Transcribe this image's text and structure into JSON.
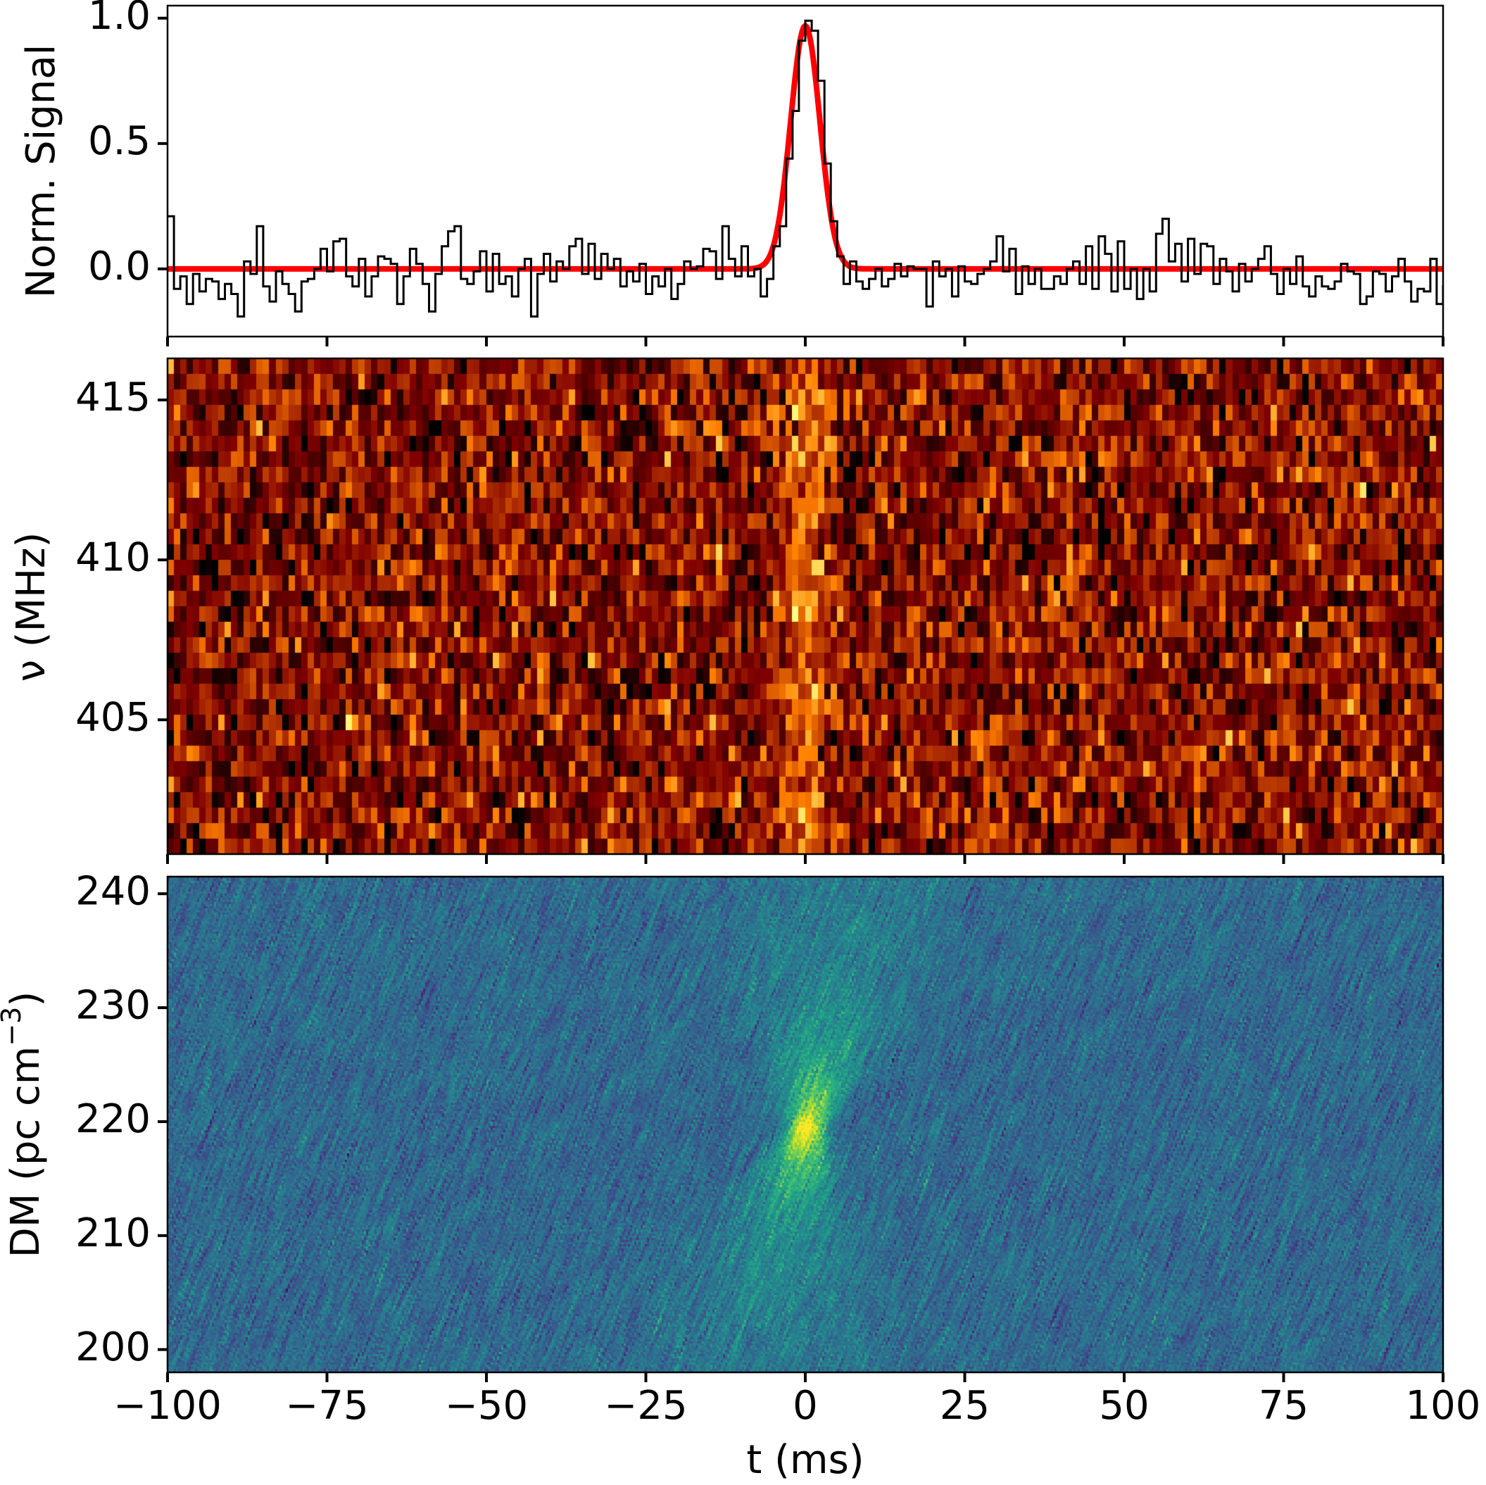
{
  "chart_data": [
    {
      "type": "line",
      "panel": "profile",
      "ylabel": "Norm. Signal",
      "xlim": [
        -100,
        100
      ],
      "ylim": [
        -0.27,
        1.05
      ],
      "yticks": [
        0.0,
        0.5,
        1.0
      ],
      "ytick_labels": [
        "0.0",
        "0.5",
        "1.0"
      ],
      "xticks": [
        -100,
        -75,
        -50,
        -25,
        0,
        25,
        50,
        75,
        100
      ],
      "grid": false,
      "series": [
        {
          "style": "step",
          "color": "#000000",
          "x_start": -100,
          "x_step": 1,
          "values": [
            0.21,
            -0.08,
            -0.03,
            -0.14,
            -0.02,
            -0.09,
            -0.04,
            -0.05,
            -0.12,
            -0.06,
            -0.1,
            -0.19,
            0.03,
            -0.02,
            0.17,
            -0.07,
            -0.13,
            -0.01,
            -0.06,
            -0.1,
            -0.17,
            -0.05,
            -0.04,
            0.0,
            0.08,
            -0.01,
            0.11,
            0.12,
            -0.03,
            -0.07,
            0.04,
            -0.11,
            -0.03,
            0.05,
            0.04,
            0.02,
            -0.14,
            -0.03,
            0.08,
            0.02,
            -0.06,
            -0.17,
            -0.02,
            0.09,
            0.15,
            0.17,
            -0.04,
            -0.06,
            -0.01,
            0.07,
            -0.09,
            0.06,
            -0.06,
            -0.03,
            -0.11,
            0.0,
            0.04,
            -0.19,
            -0.02,
            0.06,
            -0.05,
            0.03,
            0.0,
            0.09,
            0.12,
            -0.02,
            0.1,
            -0.04,
            0.06,
            0.0,
            0.04,
            -0.07,
            -0.01,
            -0.05,
            0.02,
            -0.1,
            -0.03,
            -0.07,
            0.0,
            -0.12,
            -0.06,
            0.03,
            0.0,
            0.01,
            0.08,
            0.07,
            -0.04,
            0.17,
            0.04,
            -0.03,
            0.09,
            -0.03,
            0.0,
            -0.11,
            -0.04,
            0.01,
            -0.08,
            -0.05,
            -0.09,
            -0.02,
            0.02,
            -0.04,
            -0.07,
            0.07,
            0.03,
            -0.05,
            0.06,
            0.01,
            -0.12,
            0.01,
            -0.02,
            0.0,
            -0.07,
            -0.04,
            0.02,
            -0.03,
            0.01,
            0.0,
            0.0,
            -0.15,
            0.03,
            -0.03,
            0.0,
            -0.11,
            0.01,
            -0.05,
            -0.06,
            -0.02,
            0.0,
            0.03,
            0.13,
            -0.01,
            0.08,
            -0.1,
            0.01,
            -0.06,
            0.0,
            -0.08,
            -0.08,
            -0.03,
            -0.06,
            0.0,
            0.03,
            -0.06,
            0.09,
            -0.08,
            0.13,
            0.06,
            -0.09,
            0.11,
            -0.08,
            0.0,
            -0.12,
            0.0,
            -0.09,
            0.14,
            0.2,
            0.03,
            0.1,
            -0.05,
            0.12,
            -0.02,
            0.1,
            0.09,
            -0.06,
            0.04,
            -0.01,
            -0.09,
            0.02,
            -0.05,
            0.0,
            0.04,
            0.09,
            -0.02,
            -0.1,
            0.0,
            -0.06,
            0.05,
            -0.07,
            -0.11,
            -0.03,
            -0.07,
            -0.08,
            -0.05,
            0.02,
            -0.01,
            -0.02,
            -0.14,
            -0.11,
            -0.01,
            -0.02,
            -0.09,
            -0.03,
            0.04,
            -0.05,
            -0.13,
            -0.08,
            -0.09,
            0.04,
            -0.14,
            -0.07,
            0.01,
            -0.04,
            -0.1,
            -0.02
          ],
          "peak_region": {
            "x": [
              -5,
              -4,
              -3,
              -2,
              -1,
              0,
              1,
              2,
              3,
              4,
              5,
              6,
              7,
              8,
              9,
              10
            ],
            "values": [
              0.09,
              0.17,
              0.44,
              0.63,
              0.91,
              0.99,
              0.95,
              0.75,
              0.42,
              0.19,
              0.05,
              -0.06,
              0.03,
              -0.05,
              -0.08,
              -0.04
            ]
          }
        },
        {
          "style": "line",
          "color": "#ff0000",
          "model": "gaussian",
          "amplitude": 0.97,
          "center": 0,
          "sigma": 2.3,
          "baseline": 0.0
        }
      ]
    },
    {
      "type": "heatmap",
      "panel": "dynamic-spectrum",
      "ylabel": "ν (MHz)",
      "xlim": [
        -100,
        100
      ],
      "ylim": [
        400.8,
        416.3
      ],
      "yticks": [
        405,
        410,
        415
      ],
      "ytick_labels": [
        "405",
        "410",
        "415"
      ],
      "xticks": [
        -100,
        -75,
        -50,
        -25,
        0,
        25,
        50,
        75,
        100
      ],
      "colormap": "afmhot",
      "n_time_bins": 200,
      "n_freq_channels": 32,
      "burst_time_ms": 0,
      "burst_width_ms": 2.5
    },
    {
      "type": "heatmap",
      "panel": "dm-time",
      "ylabel": "DM (pc cm",
      "ylabel_superscript": "−3",
      "ylabel_suffix": ")",
      "xlabel": "t (ms)",
      "xlim": [
        -100,
        100
      ],
      "ylim": [
        198,
        241.5
      ],
      "yticks": [
        200,
        210,
        220,
        230,
        240
      ],
      "ytick_labels": [
        "200",
        "210",
        "220",
        "230",
        "240"
      ],
      "xticks": [
        -100,
        -75,
        -50,
        -25,
        0,
        25,
        50,
        75,
        100
      ],
      "xtick_labels": [
        "−100",
        "−75",
        "−50",
        "−25",
        "0",
        "25",
        "50",
        "75",
        "100"
      ],
      "colormap": "viridis",
      "peak_dm": 219.5,
      "peak_time_ms": 0,
      "bowtie_slope_ms_per_dm": 0.35
    }
  ]
}
